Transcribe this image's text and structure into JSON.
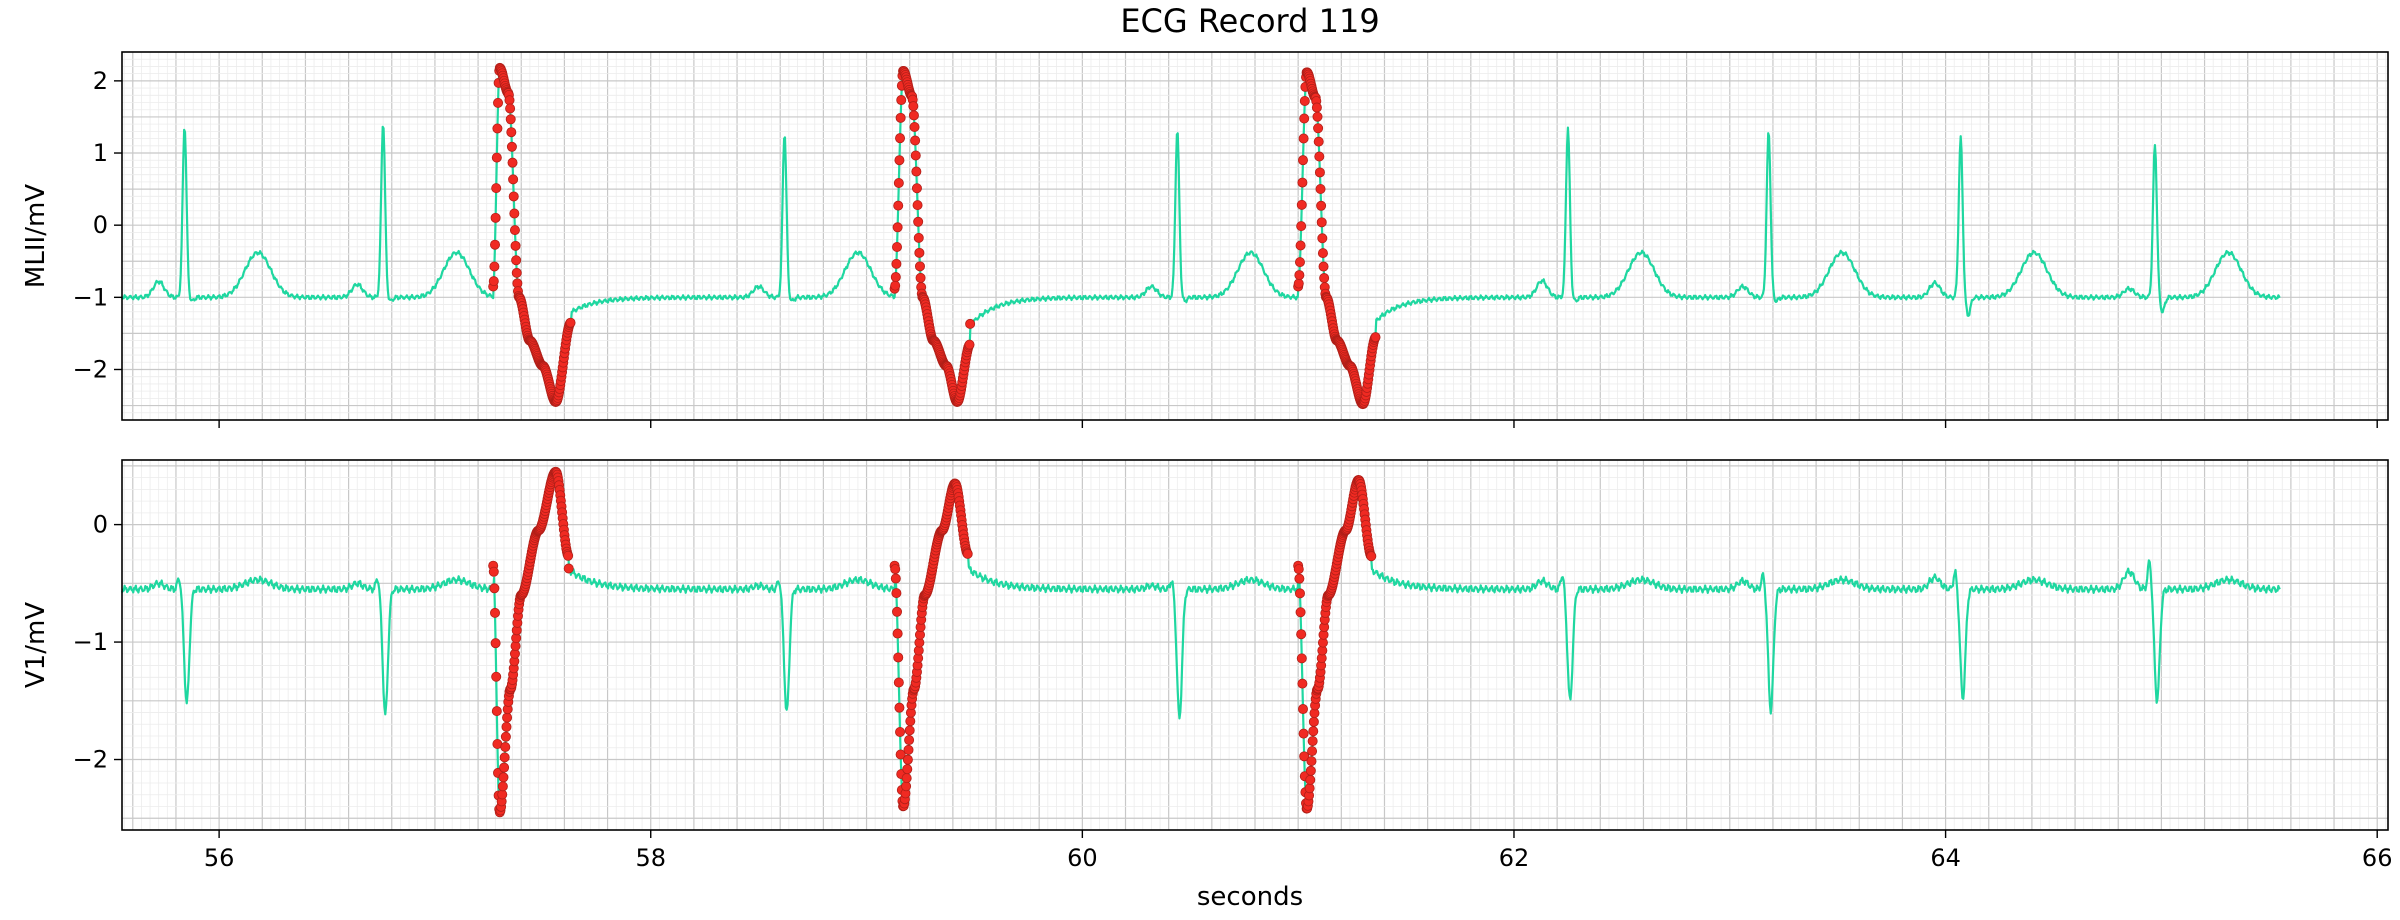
{
  "chart_data": {
    "type": "line",
    "title": "ECG Record 119",
    "xlabel": "seconds",
    "xlim": [
      55.55,
      66.05
    ],
    "xticks": [
      56,
      58,
      60,
      62,
      64,
      66
    ],
    "x_start": 55.55,
    "x_end": 65.55,
    "colors": {
      "signal": "#1fd7a0",
      "marker": "#f02a22",
      "marker_edge": "#b01f18"
    },
    "grid": true,
    "panels": [
      {
        "name": "MLII",
        "ylabel": "MLII/mV",
        "ylim": [
          -2.7,
          2.4
        ],
        "yticks": [
          -2,
          -1,
          0,
          1,
          2
        ],
        "baseline_mv": -1.0,
        "normal_beats": [
          {
            "t": 55.84,
            "p": -0.78,
            "r": 1.38,
            "s": -1.05
          },
          {
            "t": 56.76,
            "p": -0.82,
            "r": 1.43,
            "s": -1.05
          },
          {
            "t": 58.62,
            "p": -0.85,
            "r": 1.28,
            "s": -1.05
          },
          {
            "t": 60.44,
            "p": -0.85,
            "r": 1.32,
            "s": -1.05
          },
          {
            "t": 62.25,
            "p": -0.77,
            "r": 1.35,
            "s": -1.05
          },
          {
            "t": 63.18,
            "p": -0.85,
            "r": 1.3,
            "s": -1.05
          },
          {
            "t": 64.07,
            "p": -0.8,
            "r": 1.21,
            "s": -1.25
          },
          {
            "t": 64.97,
            "p": -0.88,
            "r": 1.12,
            "s": -1.2
          }
        ],
        "pvc_beats": [
          {
            "start": 57.27,
            "onset": -0.85,
            "peak_t": 57.3,
            "peak": 2.18,
            "trough_t": 57.56,
            "trough": -2.45,
            "end_t": 57.63,
            "end": -1.35
          },
          {
            "start": 59.13,
            "onset": -0.88,
            "peak_t": 59.17,
            "peak": 2.14,
            "trough_t": 59.42,
            "trough": -2.45,
            "end_t": 59.48,
            "end": -1.65
          },
          {
            "start": 61.0,
            "onset": -0.85,
            "peak_t": 61.04,
            "peak": 2.12,
            "trough_t": 61.3,
            "trough": -2.48,
            "end_t": 61.36,
            "end": -1.55
          }
        ]
      },
      {
        "name": "V1",
        "ylabel": "V1/mV",
        "ylim": [
          -2.6,
          0.55
        ],
        "yticks": [
          -2,
          -1,
          0
        ],
        "baseline_mv": -0.55,
        "normal_beats": [
          {
            "t": 55.84,
            "p": -0.5,
            "r": -0.45,
            "s": -1.52
          },
          {
            "t": 56.76,
            "p": -0.5,
            "r": -0.45,
            "s": -1.62
          },
          {
            "t": 58.62,
            "p": -0.52,
            "r": -0.47,
            "s": -1.6
          },
          {
            "t": 60.44,
            "p": -0.52,
            "r": -0.47,
            "s": -1.65
          },
          {
            "t": 62.25,
            "p": -0.48,
            "r": -0.42,
            "s": -1.5
          },
          {
            "t": 63.18,
            "p": -0.48,
            "r": -0.42,
            "s": -1.58
          },
          {
            "t": 64.07,
            "p": -0.45,
            "r": -0.4,
            "s": -1.48
          },
          {
            "t": 64.97,
            "p": -0.4,
            "r": -0.3,
            "s": -1.5
          }
        ],
        "pvc_beats": [
          {
            "start": 57.27,
            "onset": -0.35,
            "trough_t": 57.3,
            "trough": -2.45,
            "peak_t": 57.56,
            "peak": 0.45,
            "end_t": 57.62,
            "end": -0.27
          },
          {
            "start": 59.13,
            "onset": -0.35,
            "trough_t": 59.17,
            "trough": -2.4,
            "peak_t": 59.41,
            "peak": 0.35,
            "end_t": 59.47,
            "end": -0.25
          },
          {
            "start": 61.0,
            "onset": -0.35,
            "trough_t": 61.04,
            "trough": -2.42,
            "peak_t": 61.28,
            "peak": 0.38,
            "end_t": 61.34,
            "end": -0.27
          }
        ]
      }
    ]
  }
}
